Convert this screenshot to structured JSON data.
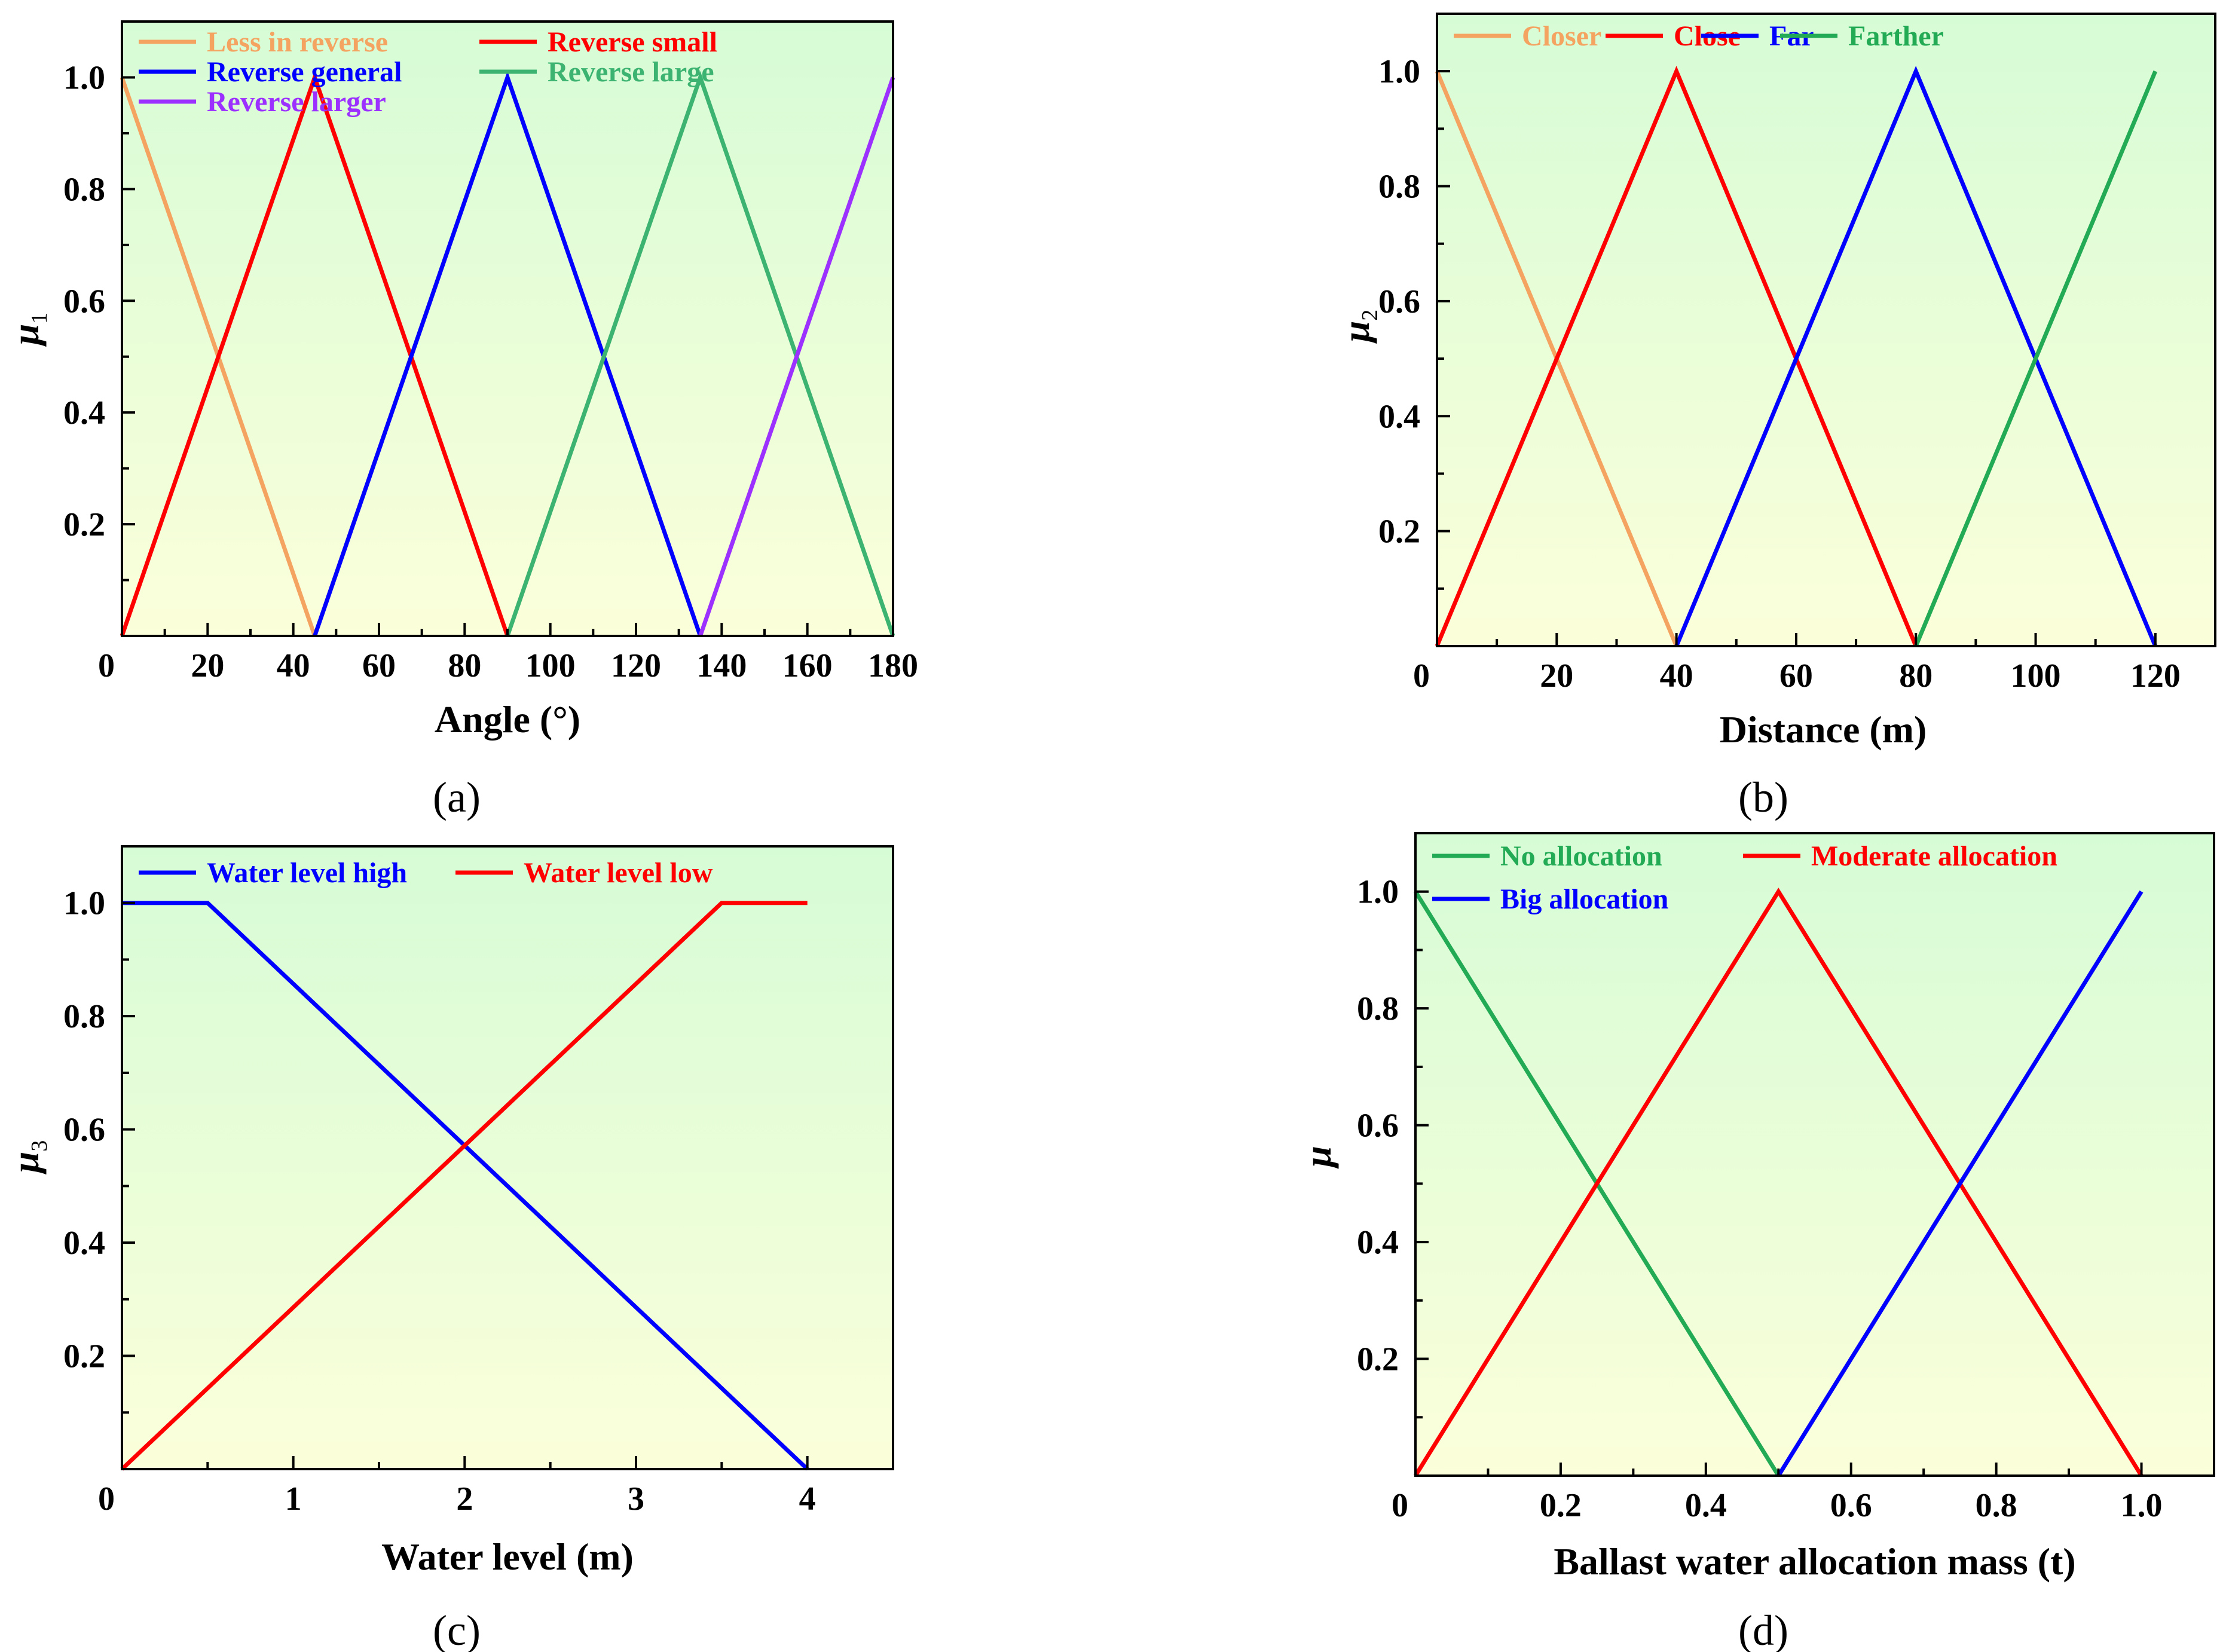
{
  "figure": {
    "background_gradient": {
      "top": "#d6fcd6",
      "bottom": "#fbffda"
    },
    "frame_color": "#000000"
  },
  "chart_data": [
    {
      "type": "line",
      "panel": "a",
      "panel_label": "(a)",
      "xlabel": "Angle (°)",
      "ylabel": "μ",
      "ylabel_sub": "1",
      "xlim": [
        0,
        180
      ],
      "ylim": [
        0,
        1.1
      ],
      "x_ticks": [
        0,
        20,
        40,
        60,
        80,
        100,
        120,
        140,
        160,
        180
      ],
      "x_tick_labels": [
        "0",
        "20",
        "40",
        "60",
        "80",
        "100",
        "120",
        "140",
        "160",
        "180"
      ],
      "x_minor_step": 10,
      "y_ticks": [
        0.2,
        0.4,
        0.6,
        0.8,
        1.0
      ],
      "y_tick_labels": [
        "0.2",
        "0.4",
        "0.6",
        "0.8",
        "1.0"
      ],
      "y_minor_step": 0.1,
      "legend_columns": 2,
      "series": [
        {
          "name": "Less in reverse",
          "color": "#f4a460",
          "x": [
            0,
            45
          ],
          "y": [
            1,
            0
          ]
        },
        {
          "name": "Reverse small",
          "color": "#ff0000",
          "x": [
            0,
            45,
            90
          ],
          "y": [
            0,
            1,
            0
          ]
        },
        {
          "name": "Reverse general",
          "color": "#0000ff",
          "x": [
            45,
            90,
            135
          ],
          "y": [
            0,
            1,
            0
          ]
        },
        {
          "name": "Reverse large",
          "color": "#3cb371",
          "x": [
            90,
            135,
            180
          ],
          "y": [
            0,
            1,
            0
          ]
        },
        {
          "name": "Reverse larger",
          "color": "#9b30ff",
          "x": [
            135,
            180
          ],
          "y": [
            0,
            1
          ]
        }
      ]
    },
    {
      "type": "line",
      "panel": "b",
      "panel_label": "(b)",
      "xlabel": "Distance (m)",
      "ylabel": "μ",
      "ylabel_sub": "2",
      "xlim": [
        0,
        130
      ],
      "ylim": [
        0,
        1.1
      ],
      "x_ticks": [
        0,
        20,
        40,
        60,
        80,
        100,
        120
      ],
      "x_tick_labels": [
        "0",
        "20",
        "40",
        "60",
        "80",
        "100",
        "120"
      ],
      "x_minor_step": 10,
      "y_ticks": [
        0.2,
        0.4,
        0.6,
        0.8,
        1.0
      ],
      "y_tick_labels": [
        "0.2",
        "0.4",
        "0.6",
        "0.8",
        "1.0"
      ],
      "y_minor_step": 0.1,
      "legend_columns": 4,
      "series": [
        {
          "name": "Closer",
          "color": "#f4a460",
          "x": [
            0,
            40
          ],
          "y": [
            1,
            0
          ]
        },
        {
          "name": "Close",
          "color": "#ff0000",
          "x": [
            0,
            40,
            80
          ],
          "y": [
            0,
            1,
            0
          ]
        },
        {
          "name": "Far",
          "color": "#0000ff",
          "x": [
            40,
            80,
            120
          ],
          "y": [
            0,
            1,
            0
          ]
        },
        {
          "name": "Farther",
          "color": "#22aa55",
          "x": [
            80,
            120
          ],
          "y": [
            0,
            1
          ]
        }
      ]
    },
    {
      "type": "line",
      "panel": "c",
      "panel_label": "(c)",
      "xlabel": "Water level (m)",
      "ylabel": "μ",
      "ylabel_sub": "3",
      "xlim": [
        0,
        4.5
      ],
      "ylim": [
        0,
        1.1
      ],
      "x_ticks": [
        0,
        1,
        2,
        3,
        4
      ],
      "x_tick_labels": [
        "0",
        "1",
        "2",
        "3",
        "4"
      ],
      "x_minor_step": 0.5,
      "y_ticks": [
        0.2,
        0.4,
        0.6,
        0.8,
        1.0
      ],
      "y_tick_labels": [
        "0.2",
        "0.4",
        "0.6",
        "0.8",
        "1.0"
      ],
      "y_minor_step": 0.1,
      "legend_columns": 2,
      "series": [
        {
          "name": "Water level high",
          "color": "#0000ff",
          "x": [
            0,
            0.5,
            4
          ],
          "y": [
            1,
            1,
            0
          ]
        },
        {
          "name": "Water level low",
          "color": "#ff0000",
          "x": [
            0,
            3.5,
            4
          ],
          "y": [
            0,
            1,
            1
          ]
        }
      ]
    },
    {
      "type": "line",
      "panel": "d",
      "panel_label": "(d)",
      "xlabel": "Ballast water allocation mass (t)",
      "ylabel": "μ",
      "ylabel_sub": "",
      "xlim": [
        0,
        1.1
      ],
      "ylim": [
        0,
        1.1
      ],
      "x_ticks": [
        0,
        0.2,
        0.4,
        0.6,
        0.8,
        1.0
      ],
      "x_tick_labels": [
        "0",
        "0.2",
        "0.4",
        "0.6",
        "0.8",
        "1.0"
      ],
      "x_minor_step": 0.1,
      "y_ticks": [
        0.2,
        0.4,
        0.6,
        0.8,
        1.0
      ],
      "y_tick_labels": [
        "0.2",
        "0.4",
        "0.6",
        "0.8",
        "1.0"
      ],
      "y_minor_step": 0.1,
      "legend_columns": 2,
      "series": [
        {
          "name": "No allocation",
          "color": "#22aa55",
          "x": [
            0,
            0.5
          ],
          "y": [
            1,
            0
          ]
        },
        {
          "name": "Moderate allocation",
          "color": "#ff0000",
          "x": [
            0,
            0.5,
            1.0
          ],
          "y": [
            0,
            1,
            0
          ]
        },
        {
          "name": "Big allocation",
          "color": "#0000ff",
          "x": [
            0.5,
            1.0
          ],
          "y": [
            0,
            1
          ]
        }
      ]
    }
  ]
}
